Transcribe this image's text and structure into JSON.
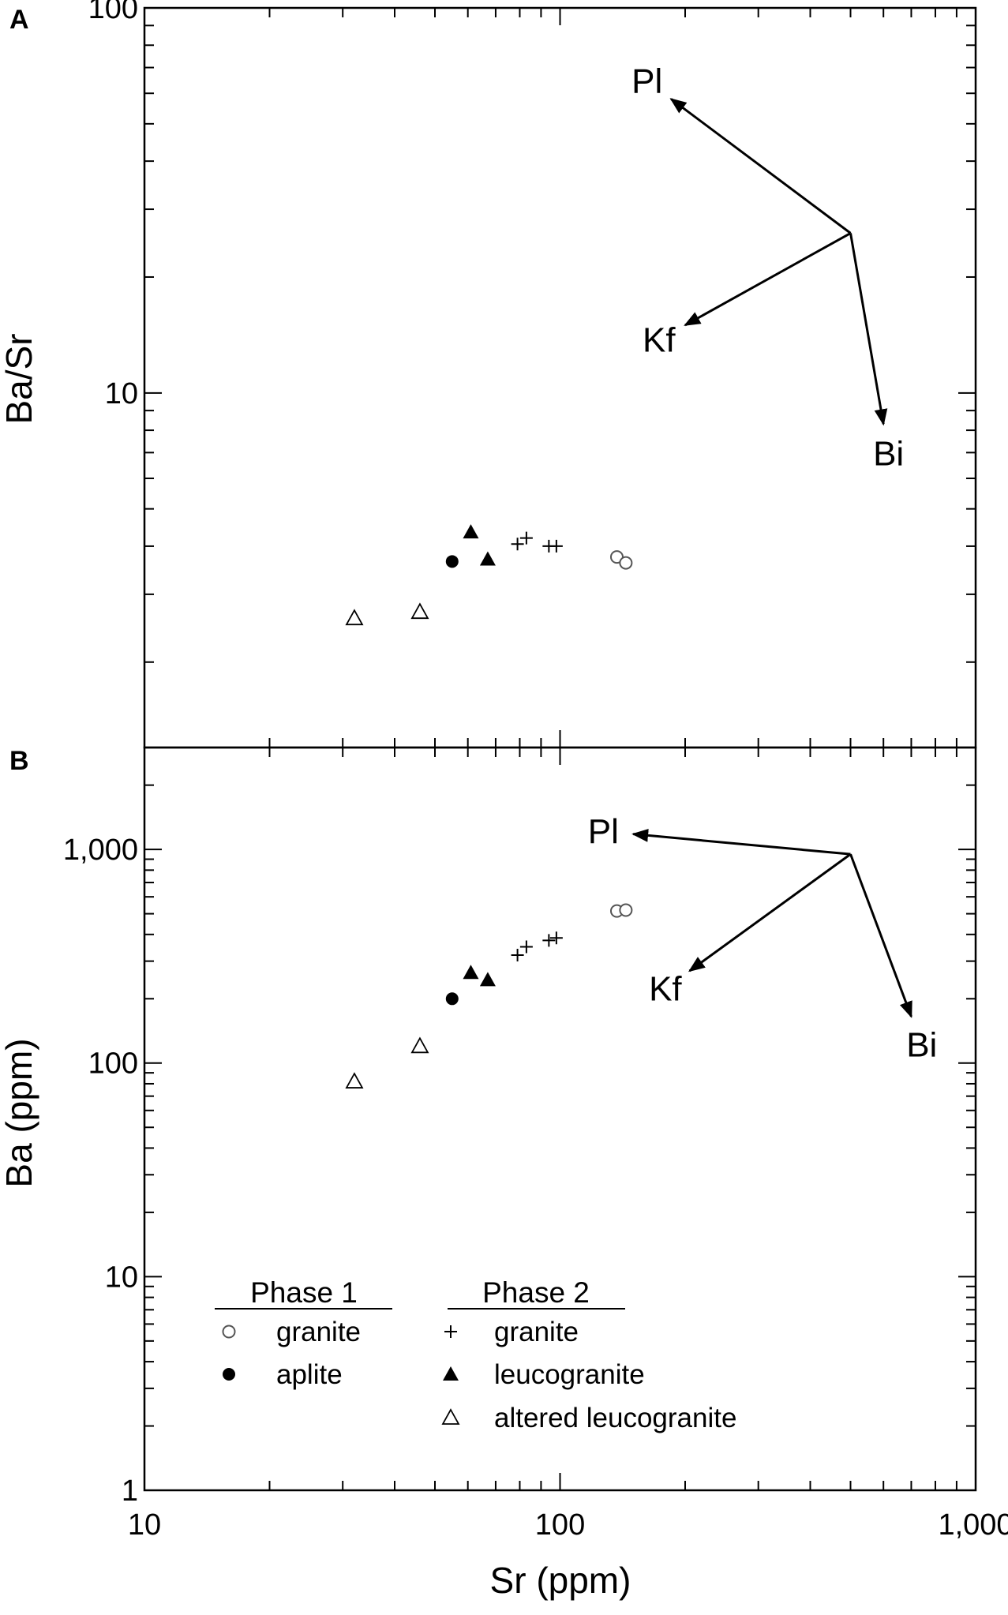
{
  "chart_data": [
    {
      "panel": "A",
      "type": "scatter",
      "xscale": "log",
      "yscale": "log",
      "xlim": [
        10,
        1000
      ],
      "ylim": [
        1.2,
        100
      ],
      "ylabel": "Ba/Sr",
      "y_ticks": [
        {
          "value": 10,
          "label": "10"
        },
        {
          "value": 100,
          "label": "100"
        }
      ],
      "series": [
        {
          "name": "granite",
          "phase": "Phase 1",
          "marker": "circle-open",
          "points": [
            [
              137,
              3.75
            ],
            [
              144,
              3.62
            ]
          ]
        },
        {
          "name": "aplite",
          "phase": "Phase 1",
          "marker": "circle-filled",
          "points": [
            [
              55,
              3.65
            ]
          ]
        },
        {
          "name": "granite",
          "phase": "Phase 2",
          "marker": "plus",
          "points": [
            [
              79,
              4.05
            ],
            [
              83,
              4.2
            ],
            [
              94,
              4.0
            ],
            [
              98,
              4.0
            ]
          ]
        },
        {
          "name": "leucogranite",
          "phase": "Phase 2",
          "marker": "triangle-filled",
          "points": [
            [
              61,
              4.35
            ],
            [
              67,
              3.7
            ]
          ]
        },
        {
          "name": "altered leucogranite",
          "phase": "Phase 2",
          "marker": "triangle-open",
          "points": [
            [
              32,
              2.6
            ],
            [
              46,
              2.7
            ]
          ]
        }
      ],
      "vectors": {
        "origin": [
          500,
          26
        ],
        "arrows": [
          {
            "label": "Pl",
            "to": [
              185,
              58
            ]
          },
          {
            "label": "Kf",
            "to": [
              200,
              15
            ]
          },
          {
            "label": "Bi",
            "to": [
              600,
              8.3
            ]
          }
        ]
      }
    },
    {
      "panel": "B",
      "type": "scatter",
      "xscale": "log",
      "yscale": "log",
      "xlim": [
        10,
        1000
      ],
      "ylim": [
        1,
        3000
      ],
      "xlabel": "Sr (ppm)",
      "ylabel": "Ba (ppm)",
      "x_ticks": [
        {
          "value": 10,
          "label": "10"
        },
        {
          "value": 100,
          "label": "100"
        },
        {
          "value": 1000,
          "label": "1,000"
        }
      ],
      "y_ticks": [
        {
          "value": 1,
          "label": "1"
        },
        {
          "value": 10,
          "label": "10"
        },
        {
          "value": 100,
          "label": "100"
        },
        {
          "value": 1000,
          "label": "1,000"
        }
      ],
      "series": [
        {
          "name": "granite",
          "phase": "Phase 1",
          "marker": "circle-open",
          "points": [
            [
              137,
              515
            ],
            [
              144,
              520
            ]
          ]
        },
        {
          "name": "aplite",
          "phase": "Phase 1",
          "marker": "circle-filled",
          "points": [
            [
              55,
              200
            ]
          ]
        },
        {
          "name": "granite",
          "phase": "Phase 2",
          "marker": "plus",
          "points": [
            [
              79,
              320
            ],
            [
              83,
              350
            ],
            [
              94,
              375
            ],
            [
              98,
              385
            ]
          ]
        },
        {
          "name": "leucogranite",
          "phase": "Phase 2",
          "marker": "triangle-filled",
          "points": [
            [
              61,
              265
            ],
            [
              67,
              245
            ]
          ]
        },
        {
          "name": "altered leucogranite",
          "phase": "Phase 2",
          "marker": "triangle-open",
          "points": [
            [
              32,
              82
            ],
            [
              46,
              120
            ]
          ]
        }
      ],
      "vectors": {
        "origin": [
          500,
          950
        ],
        "arrows": [
          {
            "label": "Pl",
            "to": [
              150,
              1180
            ]
          },
          {
            "label": "Kf",
            "to": [
              205,
              270
            ]
          },
          {
            "label": "Bi",
            "to": [
              700,
              165
            ]
          }
        ]
      }
    }
  ],
  "legend": {
    "groups": [
      {
        "title": "Phase 1",
        "items": [
          {
            "marker": "circle-open",
            "label": "granite"
          },
          {
            "marker": "circle-filled",
            "label": "aplite"
          }
        ]
      },
      {
        "title": "Phase 2",
        "items": [
          {
            "marker": "plus",
            "label": "granite"
          },
          {
            "marker": "triangle-filled",
            "label": "leucogranite"
          },
          {
            "marker": "triangle-open",
            "label": "altered leucogranite"
          }
        ]
      }
    ]
  }
}
